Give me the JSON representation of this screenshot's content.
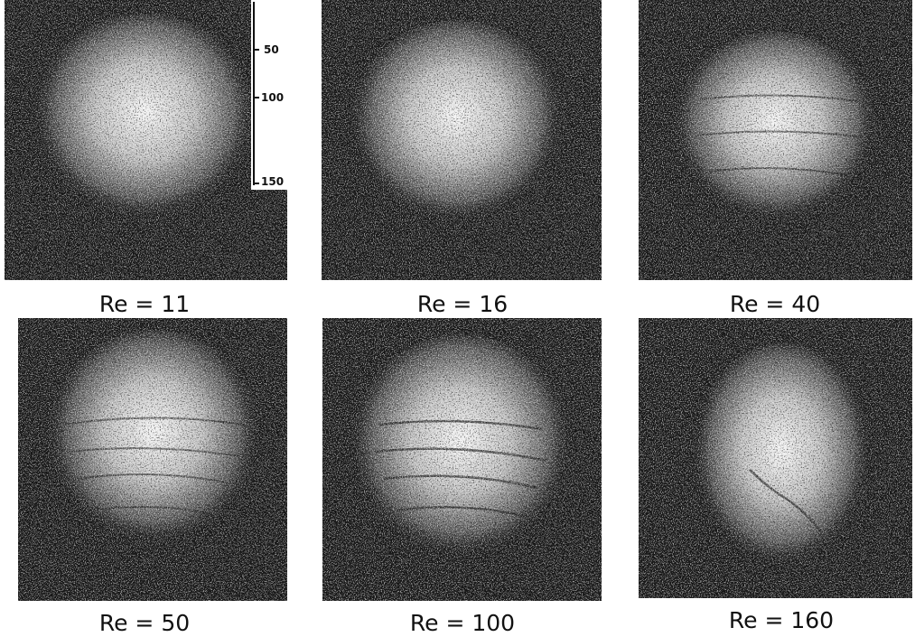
{
  "figure": {
    "panels": [
      {
        "label": "Re = 11"
      },
      {
        "label": "Re = 16"
      },
      {
        "label": "Re = 40"
      },
      {
        "label": "Re = 50"
      },
      {
        "label": "Re = 100"
      },
      {
        "label": "Re = 160"
      }
    ],
    "scale": {
      "ticks": [
        "50",
        "100",
        "150"
      ]
    }
  }
}
